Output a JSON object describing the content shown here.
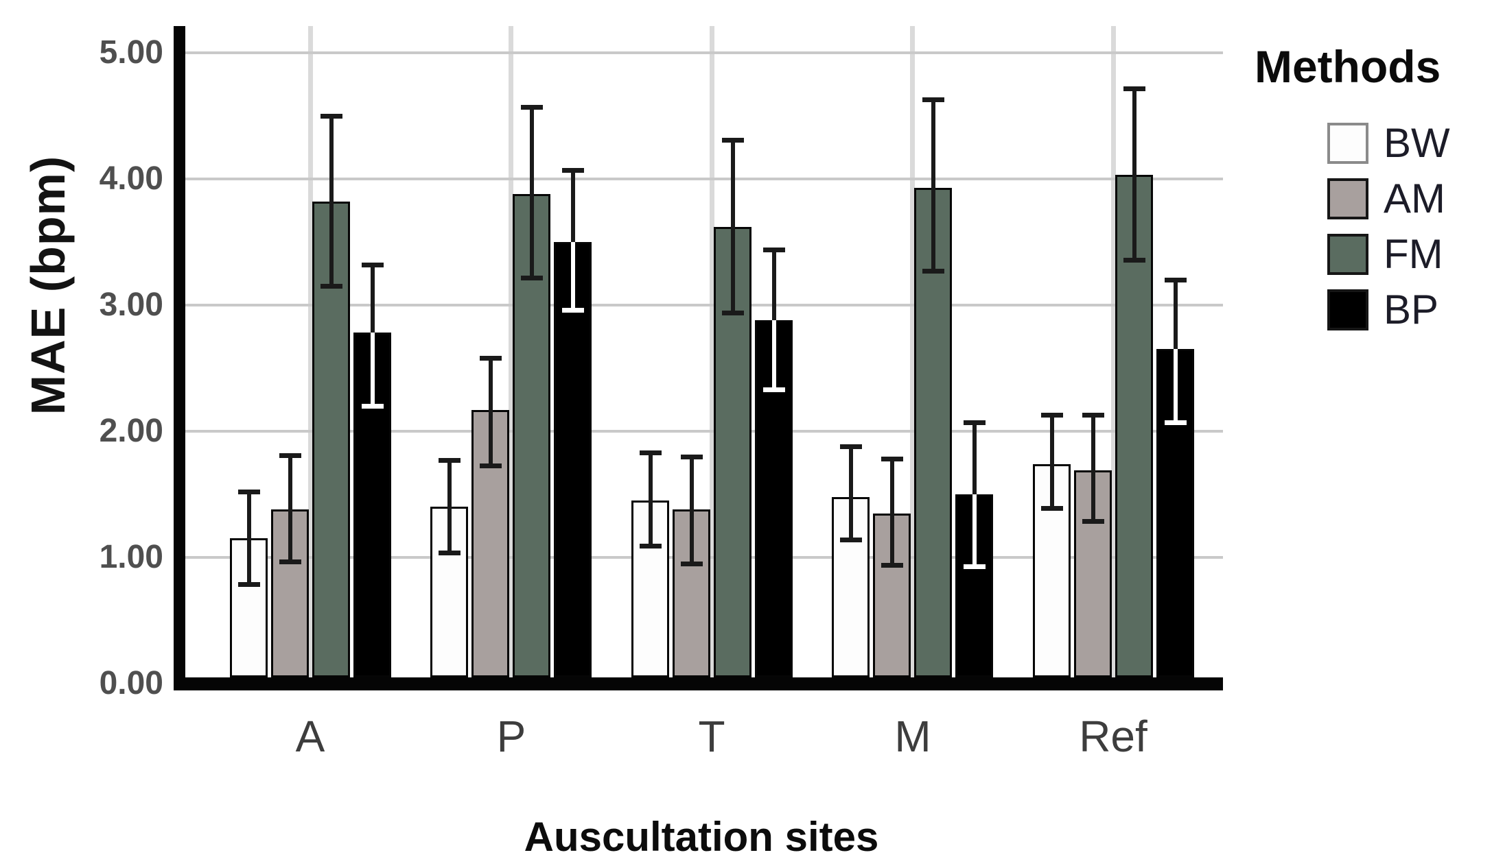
{
  "chart_data": {
    "type": "bar",
    "title": "",
    "xlabel": "Auscultation sites",
    "ylabel": "MAE (bpm)",
    "categories": [
      "A",
      "P",
      "T",
      "M",
      "Ref"
    ],
    "yticks": [
      "0.00",
      "1.00",
      "2.00",
      "3.00",
      "4.00",
      "5.00"
    ],
    "ytick_values": [
      0,
      1,
      2,
      3,
      4,
      5
    ],
    "ylim": [
      0,
      5.3
    ],
    "grid": true,
    "legend_title": "Methods",
    "legend_position": "right",
    "error_bars": true,
    "series": [
      {
        "name": "BW",
        "color": "#fdfdfd",
        "values": [
          1.15,
          1.4,
          1.45,
          1.48,
          1.74
        ],
        "err_low": [
          0.79,
          1.04,
          1.09,
          1.14,
          1.39
        ],
        "err_high": [
          1.52,
          1.77,
          1.83,
          1.88,
          2.13
        ]
      },
      {
        "name": "AM",
        "color": "#a8a09e",
        "values": [
          1.38,
          2.17,
          1.38,
          1.35,
          1.69
        ],
        "err_low": [
          0.97,
          1.73,
          0.95,
          0.94,
          1.29
        ],
        "err_high": [
          1.81,
          2.58,
          1.8,
          1.78,
          2.13
        ]
      },
      {
        "name": "FM",
        "color": "#5a6c60",
        "values": [
          3.82,
          3.88,
          3.62,
          3.93,
          4.03
        ],
        "err_low": [
          3.15,
          3.22,
          2.94,
          3.27,
          3.36
        ],
        "err_high": [
          4.5,
          4.57,
          4.31,
          4.63,
          4.72
        ]
      },
      {
        "name": "BP",
        "color": "#000000",
        "values": [
          2.78,
          3.5,
          2.88,
          1.5,
          2.65
        ],
        "err_low": [
          2.2,
          2.96,
          2.33,
          0.93,
          2.07
        ],
        "err_high": [
          3.32,
          4.07,
          3.44,
          2.07,
          3.2
        ]
      }
    ]
  }
}
